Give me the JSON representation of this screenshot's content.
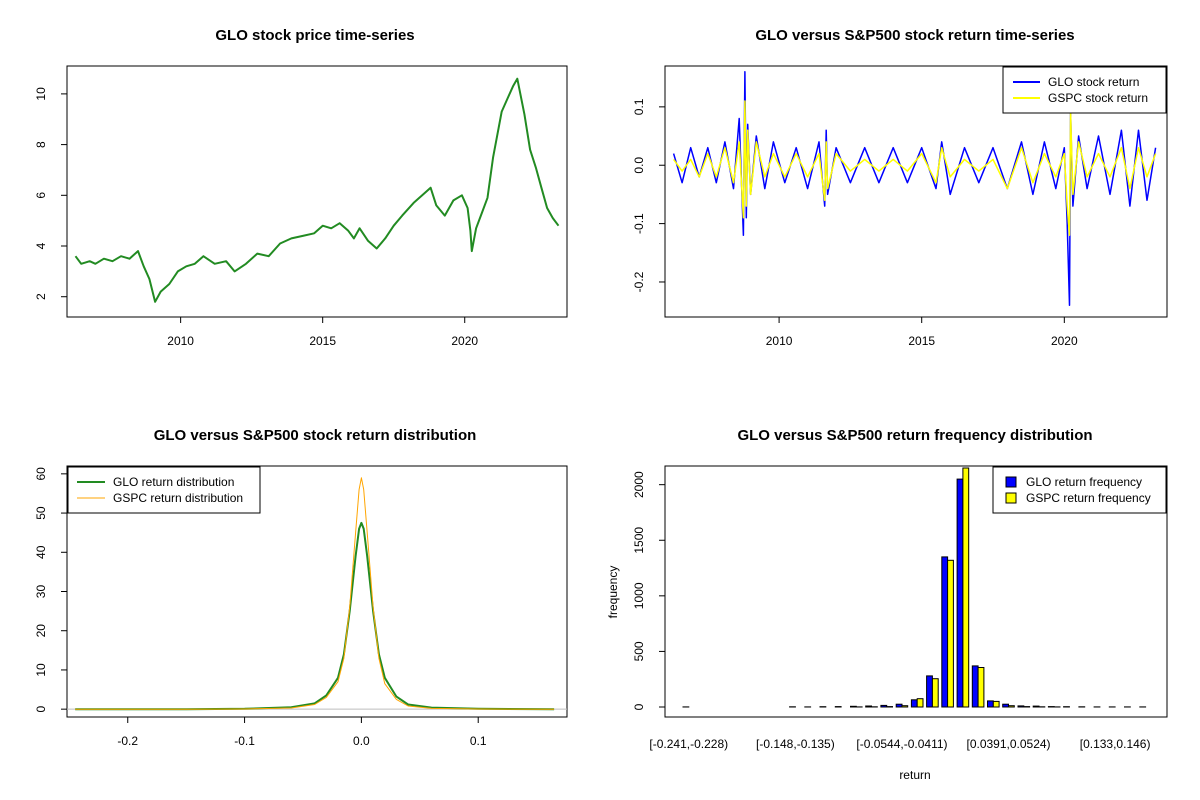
{
  "figure": {
    "background": "#ffffff"
  },
  "chart_data": [
    {
      "type": "line",
      "title": "GLO stock price time-series",
      "xlabel": "",
      "ylabel": "",
      "xlim": [
        2006.0,
        2023.6
      ],
      "ylim": [
        1.2,
        11.1
      ],
      "xticks": [
        2010,
        2015,
        2020
      ],
      "xtick_labels": [
        "2010",
        "2015",
        "2020"
      ],
      "yticks": [
        2,
        4,
        6,
        8,
        10
      ],
      "ytick_labels": [
        "2",
        "4",
        "6",
        "8",
        "10"
      ],
      "series": [
        {
          "name": "GLO price",
          "color": "#228B22",
          "x": [
            2006.3,
            2006.5,
            2006.8,
            2007.0,
            2007.3,
            2007.6,
            2007.9,
            2008.2,
            2008.5,
            2008.7,
            2008.9,
            2009.1,
            2009.3,
            2009.6,
            2009.9,
            2010.2,
            2010.5,
            2010.8,
            2011.2,
            2011.6,
            2011.9,
            2012.3,
            2012.7,
            2013.1,
            2013.5,
            2013.9,
            2014.3,
            2014.7,
            2015.0,
            2015.3,
            2015.6,
            2015.9,
            2016.1,
            2016.3,
            2016.6,
            2016.9,
            2017.2,
            2017.5,
            2017.8,
            2018.2,
            2018.6,
            2018.8,
            2019.0,
            2019.3,
            2019.6,
            2019.9,
            2020.1,
            2020.2,
            2020.25,
            2020.4,
            2020.6,
            2020.8,
            2021.0,
            2021.3,
            2021.5,
            2021.7,
            2021.85,
            2022.1,
            2022.3,
            2022.5,
            2022.7,
            2022.9,
            2023.1,
            2023.3
          ],
          "y": [
            3.6,
            3.3,
            3.4,
            3.3,
            3.5,
            3.4,
            3.6,
            3.5,
            3.8,
            3.2,
            2.7,
            1.8,
            2.2,
            2.5,
            3.0,
            3.2,
            3.3,
            3.6,
            3.3,
            3.4,
            3.0,
            3.3,
            3.7,
            3.6,
            4.1,
            4.3,
            4.4,
            4.5,
            4.8,
            4.7,
            4.9,
            4.6,
            4.3,
            4.7,
            4.2,
            3.9,
            4.3,
            4.8,
            5.2,
            5.7,
            6.1,
            6.3,
            5.6,
            5.2,
            5.8,
            6.0,
            5.5,
            4.6,
            3.8,
            4.7,
            5.3,
            5.9,
            7.5,
            9.3,
            9.8,
            10.3,
            10.6,
            9.2,
            7.8,
            7.1,
            6.3,
            5.5,
            5.1,
            4.8
          ]
        }
      ]
    },
    {
      "type": "line",
      "title": "GLO versus S&P500 stock return time-series",
      "xlabel": "",
      "ylabel": "",
      "xlim": [
        2006.0,
        2023.6
      ],
      "ylim": [
        -0.26,
        0.17
      ],
      "xticks": [
        2010,
        2015,
        2020
      ],
      "xtick_labels": [
        "2010",
        "2015",
        "2020"
      ],
      "yticks": [
        -0.2,
        -0.1,
        0.0,
        0.1
      ],
      "ytick_labels": [
        "-0.2",
        "-0.1",
        "0.0",
        "0.1"
      ],
      "legend": {
        "position": "top-right",
        "entries": [
          "GLO stock return",
          "GSPC stock return"
        ],
        "colors": [
          "#0000FF",
          "#FFFF00"
        ]
      },
      "series": [
        {
          "name": "GLO stock return",
          "color": "#0000FF",
          "x": [
            2006.3,
            2006.6,
            2006.9,
            2007.2,
            2007.5,
            2007.8,
            2008.1,
            2008.4,
            2008.6,
            2008.75,
            2008.8,
            2008.85,
            2008.9,
            2009.0,
            2009.2,
            2009.5,
            2009.8,
            2010.2,
            2010.6,
            2011.0,
            2011.4,
            2011.6,
            2011.65,
            2011.7,
            2012.0,
            2012.5,
            2013.0,
            2013.5,
            2014.0,
            2014.5,
            2015.0,
            2015.5,
            2015.7,
            2016.0,
            2016.5,
            2017.0,
            2017.5,
            2018.0,
            2018.5,
            2018.9,
            2019.3,
            2019.7,
            2020.0,
            2020.1,
            2020.18,
            2020.22,
            2020.3,
            2020.5,
            2020.8,
            2021.2,
            2021.6,
            2022.0,
            2022.3,
            2022.6,
            2022.9,
            2023.2
          ],
          "y": [
            0.02,
            -0.03,
            0.03,
            -0.02,
            0.03,
            -0.03,
            0.04,
            -0.04,
            0.08,
            -0.12,
            0.16,
            -0.09,
            0.07,
            -0.05,
            0.05,
            -0.04,
            0.04,
            -0.03,
            0.03,
            -0.04,
            0.04,
            -0.07,
            0.06,
            -0.05,
            0.03,
            -0.03,
            0.03,
            -0.03,
            0.03,
            -0.03,
            0.03,
            -0.04,
            0.04,
            -0.05,
            0.03,
            -0.03,
            0.03,
            -0.04,
            0.04,
            -0.05,
            0.04,
            -0.04,
            0.03,
            -0.1,
            -0.24,
            0.09,
            -0.07,
            0.05,
            -0.04,
            0.05,
            -0.05,
            0.06,
            -0.07,
            0.06,
            -0.06,
            0.03
          ]
        },
        {
          "name": "GSPC stock return",
          "color": "#FFFF00",
          "x": [
            2006.3,
            2006.6,
            2006.9,
            2007.2,
            2007.5,
            2007.8,
            2008.1,
            2008.4,
            2008.6,
            2008.75,
            2008.8,
            2008.85,
            2008.9,
            2009.0,
            2009.2,
            2009.5,
            2009.8,
            2010.2,
            2010.6,
            2011.0,
            2011.4,
            2011.6,
            2011.65,
            2011.7,
            2012.0,
            2012.5,
            2013.0,
            2013.5,
            2014.0,
            2014.5,
            2015.0,
            2015.5,
            2015.7,
            2016.0,
            2016.5,
            2017.0,
            2017.5,
            2018.0,
            2018.5,
            2018.9,
            2019.3,
            2019.7,
            2020.0,
            2020.1,
            2020.18,
            2020.22,
            2020.3,
            2020.5,
            2020.8,
            2021.2,
            2021.6,
            2022.0,
            2022.3,
            2022.6,
            2022.9,
            2023.2
          ],
          "y": [
            0.01,
            -0.01,
            0.01,
            -0.02,
            0.02,
            -0.02,
            0.03,
            -0.03,
            0.04,
            -0.09,
            0.11,
            -0.07,
            0.06,
            -0.05,
            0.04,
            -0.02,
            0.02,
            -0.02,
            0.02,
            -0.02,
            0.02,
            -0.06,
            0.04,
            -0.04,
            0.02,
            -0.01,
            0.01,
            -0.01,
            0.01,
            -0.01,
            0.02,
            -0.03,
            0.03,
            -0.02,
            0.01,
            -0.01,
            0.01,
            -0.04,
            0.03,
            -0.03,
            0.02,
            -0.02,
            0.02,
            -0.07,
            -0.12,
            0.09,
            -0.05,
            0.04,
            -0.02,
            0.02,
            -0.02,
            0.03,
            -0.04,
            0.03,
            -0.02,
            0.02
          ]
        }
      ]
    },
    {
      "type": "line",
      "title": "GLO versus S&P500 stock return distribution",
      "xlabel": "",
      "ylabel": "",
      "xlim": [
        -0.252,
        0.176
      ],
      "ylim": [
        -2.0,
        62.0
      ],
      "xticks": [
        -0.2,
        -0.1,
        0.0,
        0.1
      ],
      "xtick_labels": [
        "-0.2",
        "-0.1",
        "0.0",
        "0.1"
      ],
      "yticks": [
        0,
        10,
        20,
        30,
        40,
        50,
        60
      ],
      "ytick_labels": [
        "0",
        "10",
        "20",
        "30",
        "40",
        "50",
        "60"
      ],
      "legend": {
        "position": "top-left",
        "entries": [
          "GLO return distribution",
          "GSPC return distribution"
        ],
        "colors": [
          "#228B22",
          "#FFA500"
        ]
      },
      "series": [
        {
          "name": "GLO return distribution",
          "color": "#228B22",
          "x": [
            -0.245,
            -0.15,
            -0.1,
            -0.06,
            -0.04,
            -0.03,
            -0.02,
            -0.015,
            -0.01,
            -0.005,
            -0.002,
            0.0,
            0.002,
            0.005,
            0.01,
            0.015,
            0.02,
            0.03,
            0.04,
            0.06,
            0.1,
            0.165
          ],
          "y": [
            0.0,
            0.0,
            0.1,
            0.5,
            1.5,
            3.5,
            8.0,
            14.0,
            25.0,
            39.0,
            46.0,
            47.5,
            46.0,
            39.0,
            25.0,
            14.0,
            8.0,
            3.2,
            1.2,
            0.4,
            0.1,
            0.0
          ]
        },
        {
          "name": "GSPC return distribution",
          "color": "#FFA500",
          "x": [
            -0.245,
            -0.15,
            -0.1,
            -0.06,
            -0.04,
            -0.03,
            -0.02,
            -0.015,
            -0.01,
            -0.005,
            -0.002,
            0.0,
            0.002,
            0.005,
            0.01,
            0.015,
            0.02,
            0.03,
            0.04,
            0.06,
            0.1,
            0.165
          ],
          "y": [
            0.0,
            0.0,
            0.05,
            0.3,
            1.2,
            3.0,
            7.0,
            13.0,
            26.0,
            45.0,
            56.0,
            59.0,
            56.0,
            45.0,
            26.0,
            13.0,
            6.5,
            2.5,
            0.8,
            0.2,
            0.05,
            0.0
          ]
        }
      ]
    },
    {
      "type": "bar",
      "title": "GLO versus S&P500 return frequency distribution",
      "xlabel": "return",
      "ylabel": "frequency",
      "ylim": [
        0,
        2150
      ],
      "yticks": [
        0,
        500,
        1000,
        1500,
        2000
      ],
      "ytick_labels": [
        "0",
        "500",
        "1000",
        "1500",
        "2000"
      ],
      "category_labels_shown": [
        "[-0.241,-0.228)",
        "[-0.148,-0.135)",
        "[-0.0544,-0.0411)",
        "[0.0391,0.0524)",
        "[0.133,0.146)"
      ],
      "category_label_indices": [
        0,
        7,
        14,
        21,
        28
      ],
      "legend": {
        "position": "top-right",
        "entries": [
          "GLO return frequency",
          "GSPC return frequency"
        ],
        "colors": [
          "#0000FF",
          "#FFFF00"
        ]
      },
      "categories_count": 31,
      "series": [
        {
          "name": "GLO return frequency",
          "color": "#0000FF",
          "values": [
            1,
            0,
            0,
            0,
            0,
            0,
            0,
            2,
            1,
            3,
            4,
            6,
            9,
            14,
            25,
            65,
            280,
            1350,
            2050,
            370,
            55,
            25,
            10,
            8,
            4,
            3,
            2,
            1,
            1,
            1,
            1
          ]
        },
        {
          "name": "GSPC return frequency",
          "color": "#FFFF00",
          "values": [
            0,
            0,
            0,
            0,
            0,
            0,
            0,
            0,
            0,
            0,
            0,
            1,
            2,
            4,
            12,
            75,
            255,
            1320,
            2150,
            355,
            50,
            12,
            4,
            2,
            1,
            0,
            0,
            0,
            0,
            0,
            0
          ]
        }
      ]
    }
  ]
}
